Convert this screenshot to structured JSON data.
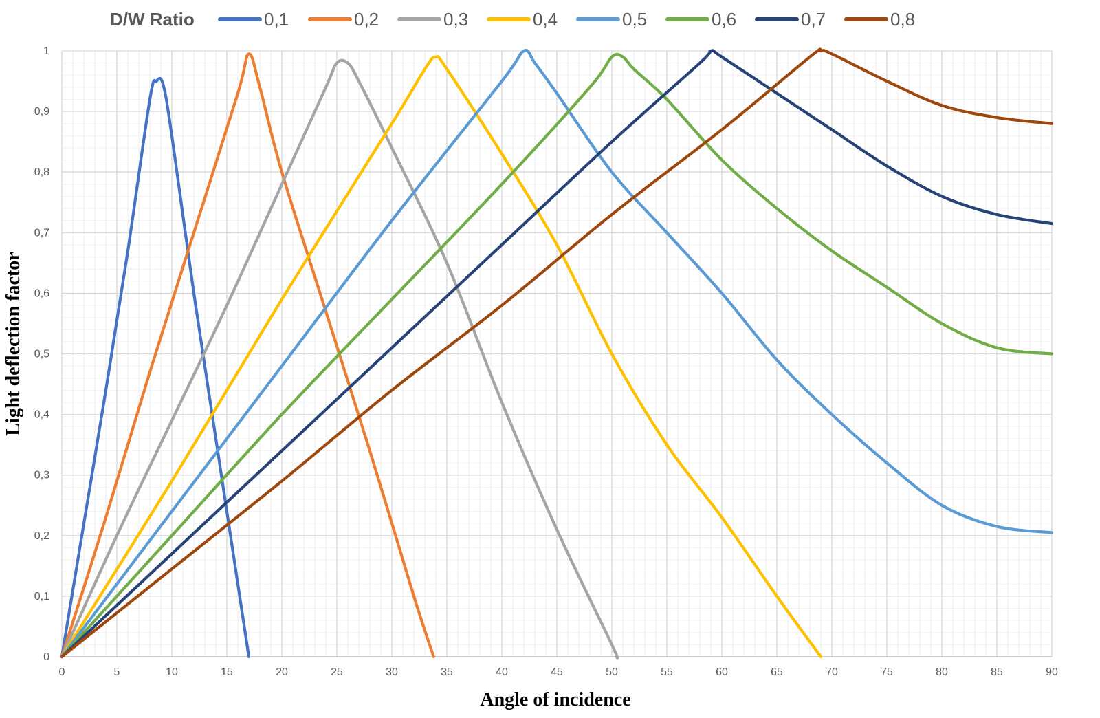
{
  "chart_data": {
    "type": "line",
    "title": "",
    "xlabel": "Angle of incidence",
    "ylabel": "Light deflection factor",
    "xlim": [
      0,
      90
    ],
    "ylim": [
      0,
      1
    ],
    "x_ticks": [
      0,
      5,
      10,
      15,
      20,
      25,
      30,
      35,
      40,
      45,
      50,
      55,
      60,
      65,
      70,
      75,
      80,
      85,
      90
    ],
    "x_tick_labels": [
      "0",
      "5",
      "10",
      "15",
      "20",
      "25",
      "30",
      "35",
      "40",
      "45",
      "50",
      "55",
      "60",
      "65",
      "70",
      "75",
      "80",
      "85",
      "90"
    ],
    "y_ticks": [
      0,
      0.1,
      0.2,
      0.3,
      0.4,
      0.5,
      0.6,
      0.7,
      0.8,
      0.9,
      1
    ],
    "y_tick_labels": [
      "0",
      "0,1",
      "0,2",
      "0,3",
      "0,4",
      "0,5",
      "0,6",
      "0,7",
      "0,8",
      "0,9",
      "1"
    ],
    "grid": "major and minor",
    "legend_title": "D/W Ratio",
    "legend_position": "top",
    "series": [
      {
        "name": "0,1",
        "color": "#4472C4",
        "points": [
          [
            0,
            0
          ],
          [
            2,
            0.22
          ],
          [
            4,
            0.44
          ],
          [
            6,
            0.67
          ],
          [
            8,
            0.92
          ],
          [
            8.6,
            0.95
          ],
          [
            9.2,
            0.945
          ],
          [
            10,
            0.86
          ],
          [
            12,
            0.6
          ],
          [
            14,
            0.36
          ],
          [
            16,
            0.12
          ],
          [
            17,
            0
          ]
        ]
      },
      {
        "name": "0,2",
        "color": "#ED7D31",
        "points": [
          [
            0,
            0
          ],
          [
            4,
            0.23
          ],
          [
            8,
            0.47
          ],
          [
            12,
            0.7
          ],
          [
            16,
            0.93
          ],
          [
            17,
            0.995
          ],
          [
            18,
            0.94
          ],
          [
            20,
            0.8
          ],
          [
            24,
            0.57
          ],
          [
            28,
            0.34
          ],
          [
            32,
            0.1
          ],
          [
            33.8,
            0
          ]
        ]
      },
      {
        "name": "0,3",
        "color": "#A5A5A5",
        "points": [
          [
            0,
            0
          ],
          [
            5,
            0.2
          ],
          [
            10,
            0.39
          ],
          [
            15,
            0.58
          ],
          [
            20,
            0.78
          ],
          [
            24,
            0.94
          ],
          [
            25,
            0.98
          ],
          [
            26,
            0.98
          ],
          [
            27,
            0.95
          ],
          [
            30,
            0.84
          ],
          [
            35,
            0.65
          ],
          [
            40,
            0.42
          ],
          [
            45,
            0.21
          ],
          [
            50,
            0.02
          ],
          [
            50.4,
            0
          ]
        ]
      },
      {
        "name": "0,4",
        "color": "#FFC000",
        "points": [
          [
            0,
            0
          ],
          [
            10,
            0.29
          ],
          [
            20,
            0.59
          ],
          [
            30,
            0.88
          ],
          [
            33,
            0.97
          ],
          [
            34,
            0.99
          ],
          [
            35,
            0.97
          ],
          [
            40,
            0.83
          ],
          [
            45,
            0.68
          ],
          [
            50,
            0.5
          ],
          [
            55,
            0.35
          ],
          [
            60,
            0.23
          ],
          [
            65,
            0.1
          ],
          [
            69,
            0
          ]
        ]
      },
      {
        "name": "0,5",
        "color": "#5B9BD5",
        "points": [
          [
            0,
            0
          ],
          [
            10,
            0.24
          ],
          [
            20,
            0.48
          ],
          [
            30,
            0.72
          ],
          [
            40,
            0.95
          ],
          [
            42,
            1.0
          ],
          [
            43,
            0.98
          ],
          [
            45,
            0.93
          ],
          [
            50,
            0.8
          ],
          [
            55,
            0.7
          ],
          [
            60,
            0.6
          ],
          [
            65,
            0.49
          ],
          [
            70,
            0.4
          ],
          [
            75,
            0.32
          ],
          [
            80,
            0.25
          ],
          [
            85,
            0.215
          ],
          [
            90,
            0.205
          ]
        ]
      },
      {
        "name": "0,6",
        "color": "#70AD47",
        "points": [
          [
            0,
            0
          ],
          [
            10,
            0.2
          ],
          [
            20,
            0.4
          ],
          [
            30,
            0.59
          ],
          [
            40,
            0.78
          ],
          [
            48,
            0.94
          ],
          [
            50,
            0.99
          ],
          [
            51,
            0.99
          ],
          [
            52,
            0.97
          ],
          [
            55,
            0.92
          ],
          [
            60,
            0.82
          ],
          [
            65,
            0.74
          ],
          [
            70,
            0.67
          ],
          [
            75,
            0.61
          ],
          [
            80,
            0.55
          ],
          [
            85,
            0.51
          ],
          [
            90,
            0.5
          ]
        ]
      },
      {
        "name": "0,7",
        "color": "#264478",
        "points": [
          [
            0,
            0
          ],
          [
            10,
            0.17
          ],
          [
            20,
            0.34
          ],
          [
            30,
            0.51
          ],
          [
            40,
            0.68
          ],
          [
            50,
            0.85
          ],
          [
            58,
            0.98
          ],
          [
            59,
            1.0
          ],
          [
            60,
            0.99
          ],
          [
            65,
            0.93
          ],
          [
            70,
            0.87
          ],
          [
            75,
            0.81
          ],
          [
            80,
            0.76
          ],
          [
            85,
            0.73
          ],
          [
            90,
            0.715
          ]
        ]
      },
      {
        "name": "0,8",
        "color": "#9E480E",
        "points": [
          [
            0,
            0
          ],
          [
            10,
            0.145
          ],
          [
            20,
            0.29
          ],
          [
            30,
            0.44
          ],
          [
            40,
            0.58
          ],
          [
            50,
            0.73
          ],
          [
            60,
            0.87
          ],
          [
            68,
            0.99
          ],
          [
            69,
            1.0
          ],
          [
            70,
            0.995
          ],
          [
            75,
            0.95
          ],
          [
            80,
            0.91
          ],
          [
            85,
            0.89
          ],
          [
            90,
            0.88
          ]
        ]
      }
    ]
  }
}
